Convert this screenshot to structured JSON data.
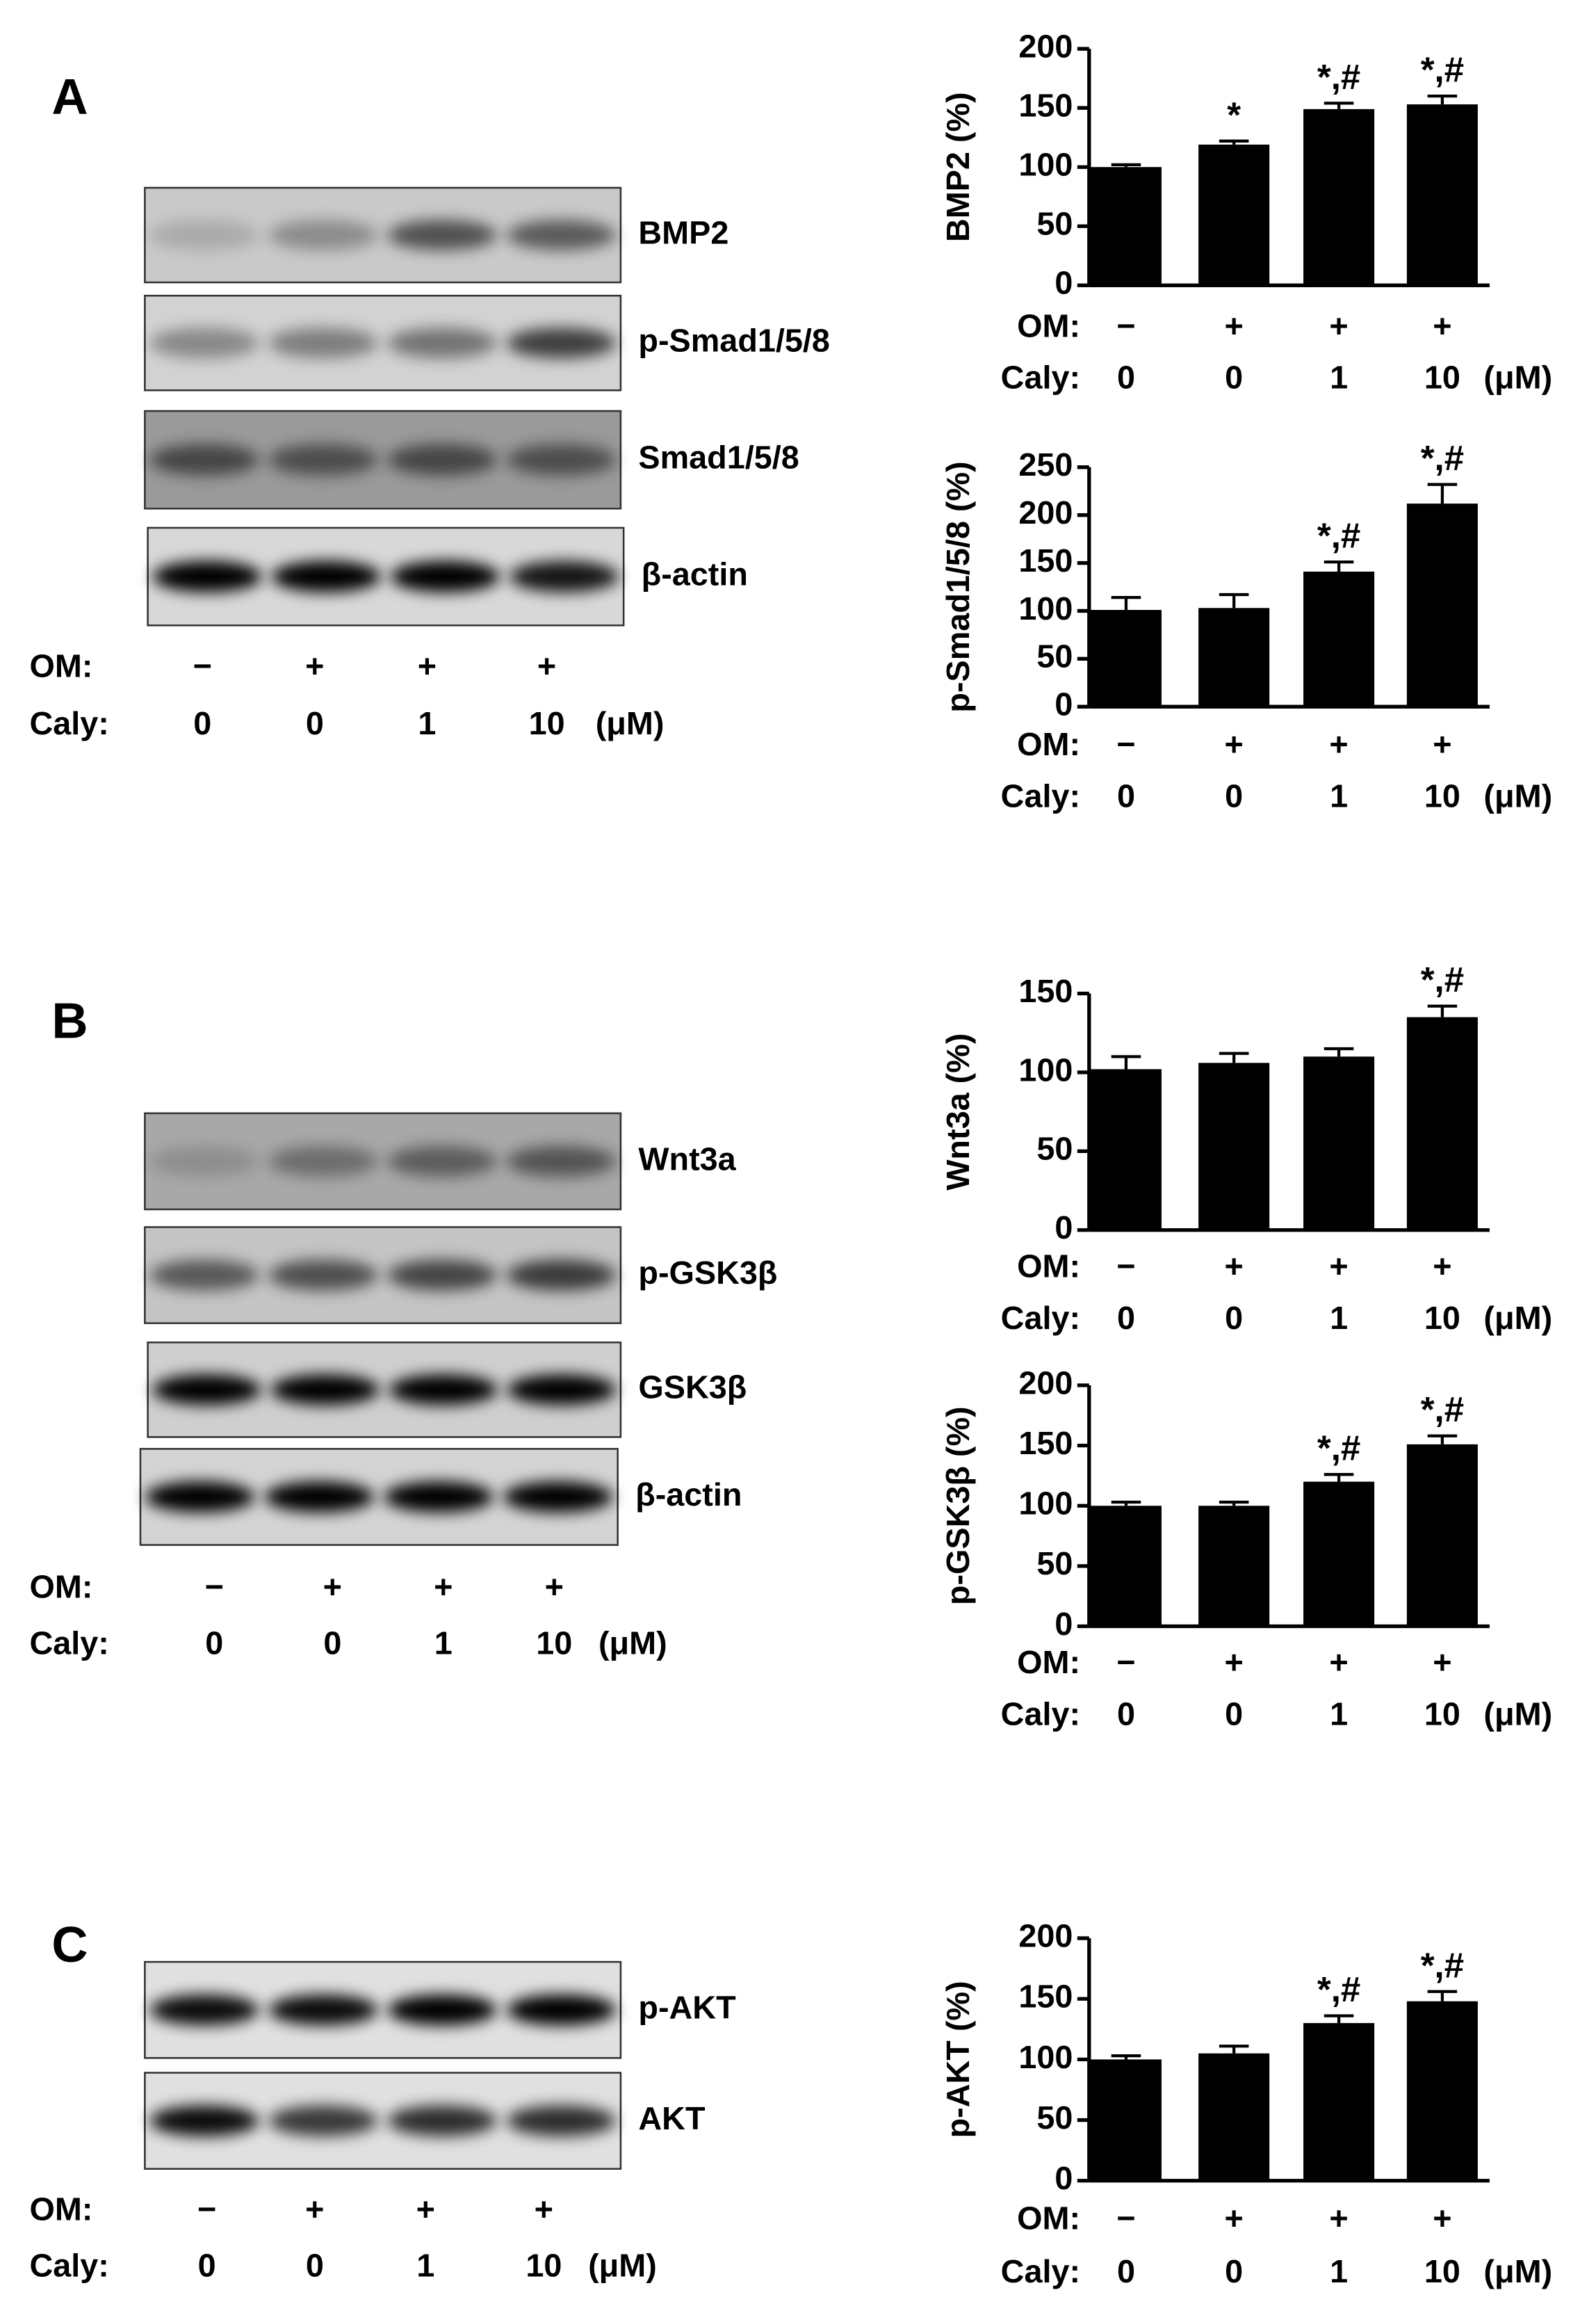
{
  "panels": [
    {
      "letter": "A",
      "blots": [
        "BMP2",
        "p-Smad1/5/8",
        "Smad1/5/8",
        "β-actin"
      ],
      "rows": [
        {
          "label": "OM:",
          "labels": [
            "−",
            "+",
            "+",
            "+"
          ]
        },
        {
          "label": "Caly:",
          "labels": [
            "0",
            "0",
            "1",
            "10"
          ],
          "unit": "(μM)"
        }
      ]
    },
    {
      "letter": "B",
      "blots": [
        "Wnt3a",
        "p-GSK3β",
        "GSK3β",
        "β-actin"
      ],
      "rows": [
        {
          "label": "OM:",
          "labels": [
            "−",
            "+",
            "+",
            "+"
          ]
        },
        {
          "label": "Caly:",
          "labels": [
            "0",
            "0",
            "1",
            "10"
          ],
          "unit": "(μM)"
        }
      ]
    },
    {
      "letter": "C",
      "blots": [
        "p-AKT",
        "AKT"
      ],
      "rows": [
        {
          "label": "OM:",
          "labels": [
            "−",
            "+",
            "+",
            "+"
          ]
        },
        {
          "label": "Caly:",
          "labels": [
            "0",
            "0",
            "1",
            "10"
          ],
          "unit": "(μM)"
        }
      ]
    }
  ],
  "chart_data": [
    {
      "type": "bar",
      "y_label": "BMP2 (%)",
      "values": [
        100,
        119,
        149,
        153
      ],
      "errors": [
        2,
        3,
        5,
        7
      ],
      "significance": [
        null,
        "*",
        "*,#",
        "*,#"
      ],
      "color": "#000000",
      "ylim": [
        0,
        200
      ],
      "yticks": [
        0,
        50,
        100,
        150,
        200
      ],
      "rows": [
        {
          "label": "OM:",
          "labels": [
            "−",
            "+",
            "+",
            "+"
          ]
        },
        {
          "label": "Caly:",
          "labels": [
            "0",
            "0",
            "1",
            "10"
          ],
          "unit": "(μM)"
        }
      ]
    },
    {
      "type": "bar",
      "y_label": "p-Smad1/5/8 (%)",
      "values": [
        101,
        103,
        141,
        212
      ],
      "errors": [
        13,
        14,
        10,
        20
      ],
      "significance": [
        null,
        null,
        "*,#",
        "*,#"
      ],
      "color": "#000000",
      "ylim": [
        0,
        250
      ],
      "yticks": [
        0,
        50,
        100,
        150,
        200,
        250
      ],
      "rows": [
        {
          "label": "OM:",
          "labels": [
            "−",
            "+",
            "+",
            "+"
          ]
        },
        {
          "label": "Caly:",
          "labels": [
            "0",
            "0",
            "1",
            "10"
          ],
          "unit": "(μM)"
        }
      ]
    },
    {
      "type": "bar",
      "y_label": "Wnt3a (%)",
      "values": [
        102,
        106,
        110,
        135
      ],
      "errors": [
        8,
        6,
        5,
        7
      ],
      "significance": [
        null,
        null,
        null,
        "*,#"
      ],
      "color": "#000000",
      "ylim": [
        0,
        150
      ],
      "yticks": [
        0,
        50,
        100,
        150
      ],
      "rows": [
        {
          "label": "OM:",
          "labels": [
            "−",
            "+",
            "+",
            "+"
          ]
        },
        {
          "label": "Caly:",
          "labels": [
            "0",
            "0",
            "1",
            "10"
          ],
          "unit": "(μM)"
        }
      ]
    },
    {
      "type": "bar",
      "y_label": "p-GSK3β (%)",
      "values": [
        100,
        100,
        120,
        151
      ],
      "errors": [
        3,
        3,
        6,
        7
      ],
      "significance": [
        null,
        null,
        "*,#",
        "*,#"
      ],
      "color": "#000000",
      "ylim": [
        0,
        200
      ],
      "yticks": [
        0,
        50,
        100,
        150,
        200
      ],
      "rows": [
        {
          "label": "OM:",
          "labels": [
            "−",
            "+",
            "+",
            "+"
          ]
        },
        {
          "label": "Caly:",
          "labels": [
            "0",
            "0",
            "1",
            "10"
          ],
          "unit": "(μM)"
        }
      ]
    },
    {
      "type": "bar",
      "y_label": "p-AKT (%)",
      "values": [
        100,
        105,
        130,
        148
      ],
      "errors": [
        3,
        6,
        6,
        8
      ],
      "significance": [
        null,
        null,
        "*,#",
        "*,#"
      ],
      "color": "#000000",
      "ylim": [
        0,
        200
      ],
      "yticks": [
        0,
        50,
        100,
        150,
        200
      ],
      "rows": [
        {
          "label": "OM:",
          "labels": [
            "−",
            "+",
            "+",
            "+"
          ]
        },
        {
          "label": "Caly:",
          "labels": [
            "0",
            "0",
            "1",
            "10"
          ],
          "unit": "(μM)"
        }
      ]
    }
  ]
}
